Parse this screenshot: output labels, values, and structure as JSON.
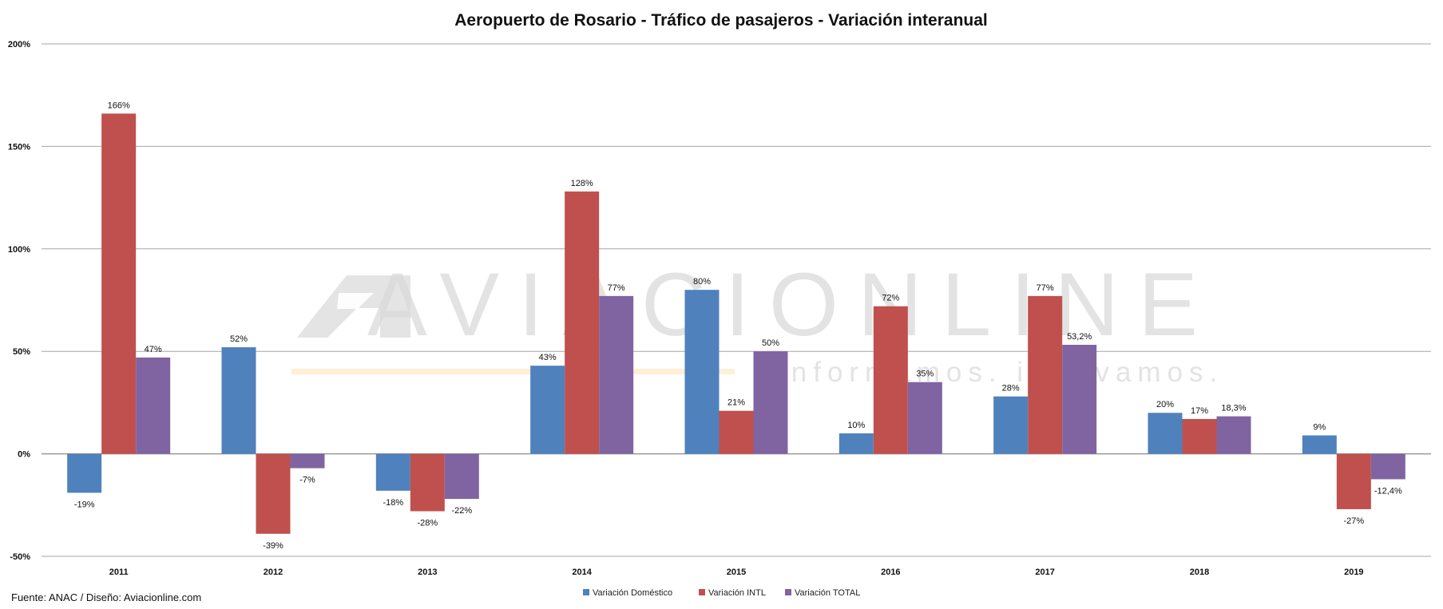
{
  "chart_data": {
    "type": "bar",
    "title": "Aeropuerto de Rosario - Tráfico de pasajeros - Variación interanual",
    "xlabel": "",
    "ylabel": "",
    "categories": [
      "2011",
      "2012",
      "2013",
      "2014",
      "2015",
      "2016",
      "2017",
      "2018",
      "2019"
    ],
    "ylim": [
      -50,
      200
    ],
    "yticks": [
      -50,
      0,
      50,
      100,
      150,
      200
    ],
    "ytick_labels": [
      "-50%",
      "0%",
      "50%",
      "100%",
      "150%",
      "200%"
    ],
    "grid": true,
    "legend_position": "bottom",
    "series": [
      {
        "name": "Variación Doméstico",
        "color": "#4F81BD",
        "values": [
          -19,
          52,
          -18,
          43,
          80,
          10,
          28,
          20,
          9
        ],
        "labels": [
          "-19%",
          "52%",
          "-18%",
          "43%",
          "80%",
          "10%",
          "28%",
          "20%",
          "9%"
        ]
      },
      {
        "name": "Variación INTL",
        "color": "#C0504D",
        "values": [
          166,
          -39,
          -28,
          128,
          21,
          72,
          77,
          17,
          -27
        ],
        "labels": [
          "166%",
          "-39%",
          "-28%",
          "128%",
          "21%",
          "72%",
          "77%",
          "17%",
          "-27%"
        ]
      },
      {
        "name": "Variación TOTAL",
        "color": "#8064A2",
        "values": [
          47,
          -7,
          -22,
          77,
          50,
          35,
          53.2,
          18.3,
          -12.4
        ],
        "labels": [
          "47%",
          "-7%",
          "-22%",
          "77%",
          "50%",
          "35%",
          "53,2%",
          "18,3%",
          "-12,4%"
        ]
      }
    ]
  },
  "source": "Fuente: ANAC / Diseño: Aviacionline.com",
  "watermark": {
    "brand": "AVIACIONLINE",
    "tagline": "informamos. innovamos."
  }
}
